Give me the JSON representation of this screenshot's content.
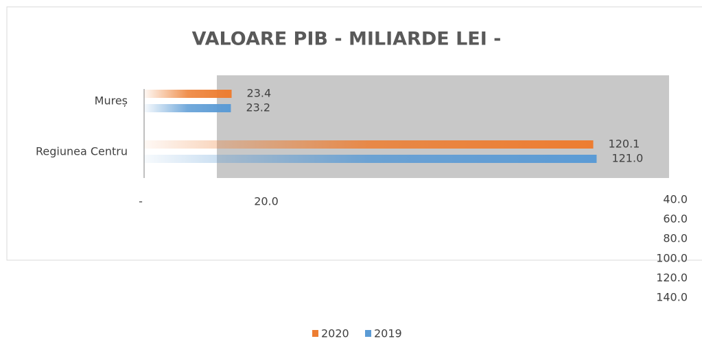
{
  "chart_data": {
    "type": "hbar",
    "title": "VALOARE PIB - MILIARDE LEI -",
    "categories": [
      "Mureș",
      "Regiunea Centru"
    ],
    "series": [
      {
        "name": "2020",
        "color": "#ed7d31",
        "values": [
          23.4,
          120.1
        ],
        "value_labels": [
          "23.4",
          "120.1"
        ]
      },
      {
        "name": "2019",
        "color": "#5b9bd5",
        "values": [
          23.2,
          121.0
        ],
        "value_labels": [
          "23.2",
          "121.0"
        ]
      }
    ],
    "xlim": [
      0,
      140
    ],
    "xticks": [
      {
        "value": 0,
        "label": "-"
      },
      {
        "value": 20,
        "label": "20.0"
      },
      {
        "value": 40,
        "label": "40.0"
      },
      {
        "value": 60,
        "label": "60.0"
      },
      {
        "value": 80,
        "label": "80.0"
      },
      {
        "value": 100,
        "label": "100.0"
      },
      {
        "value": 120,
        "label": "120.0"
      },
      {
        "value": 140,
        "label": "140.0"
      }
    ],
    "legend": "bottom"
  }
}
